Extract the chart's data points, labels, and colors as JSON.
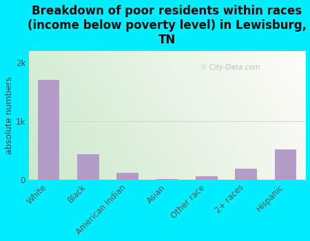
{
  "categories": [
    "White",
    "Black",
    "American Indian",
    "Asian",
    "Other race",
    "2+ races",
    "Hispanic"
  ],
  "values": [
    1700,
    430,
    115,
    5,
    55,
    185,
    520
  ],
  "bar_color": "#b39dc8",
  "title": "Breakdown of poor residents within races\n(income below poverty level) in Lewisburg,\nTN",
  "ylabel": "absolute numbers",
  "ylim": [
    0,
    2200
  ],
  "ytick_vals": [
    0,
    1000,
    2000
  ],
  "ytick_labels": [
    "0",
    "1k",
    "2k"
  ],
  "background_outer": "#00eeff",
  "bg_color_topleft": "#d6ecd2",
  "bg_color_topright": "#e8efe8",
  "bg_color_bottomleft": "#d4eccc",
  "bg_color_bottomright": "#f8faf5",
  "grid_color": "#e0e8d8",
  "watermark": "City-Data.com",
  "title_fontsize": 12,
  "ylabel_fontsize": 9,
  "tick_fontsize": 8.5
}
